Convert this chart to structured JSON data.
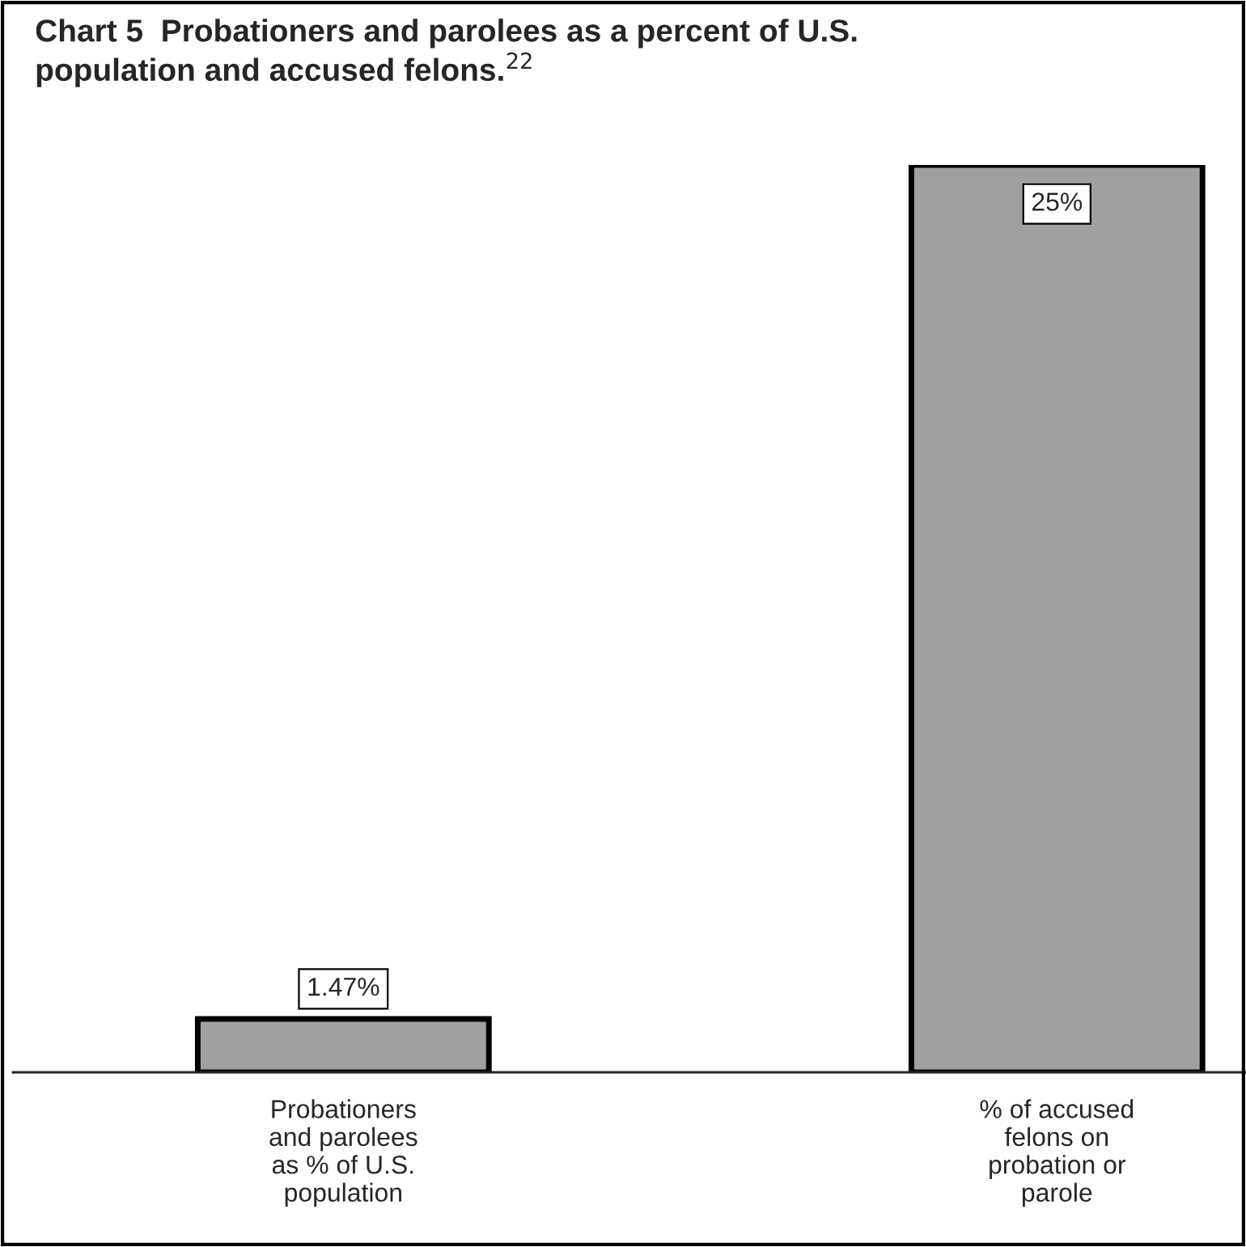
{
  "chart_data": {
    "type": "bar",
    "title": "Chart 5  Probationers and parolees as a percent of U.S.\npopulation and accused felons.$^{22}$",
    "categories": [
      "Probationers\nand parolees\nas % of U.S.\npopulation",
      "% of accused\nfelons on\nprobation or\nparole"
    ],
    "values": [
      1.47,
      25
    ],
    "value_labels": [
      "1.47%",
      "25%"
    ],
    "color": "#a0a0a0",
    "grid": false,
    "legend": false
  }
}
